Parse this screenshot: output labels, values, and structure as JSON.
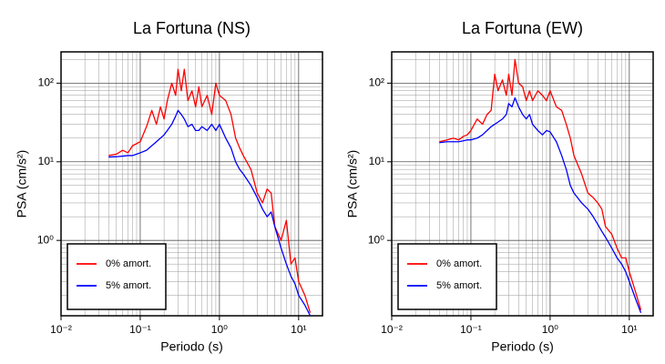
{
  "chart_data": [
    {
      "type": "line",
      "title": "La Fortuna (NS)",
      "xlabel": "Periodo (s)",
      "ylabel": "PSA (cm/s²)",
      "x": [
        0.04,
        0.05,
        0.06,
        0.07,
        0.08,
        0.09,
        0.1,
        0.12,
        0.14,
        0.16,
        0.18,
        0.2,
        0.22,
        0.25,
        0.28,
        0.3,
        0.33,
        0.36,
        0.4,
        0.45,
        0.5,
        0.55,
        0.6,
        0.7,
        0.8,
        0.9,
        1,
        1.2,
        1.4,
        1.6,
        1.8,
        2,
        2.5,
        3,
        3.5,
        4,
        4.5,
        5,
        6,
        7,
        8,
        9,
        10,
        12,
        14
      ],
      "series": [
        {
          "name": "0% amort.",
          "color": "#ff0000",
          "values": [
            12,
            12.5,
            14,
            13,
            16,
            17,
            18,
            28,
            45,
            30,
            50,
            35,
            60,
            100,
            70,
            150,
            80,
            150,
            60,
            80,
            50,
            90,
            50,
            70,
            40,
            100,
            70,
            60,
            40,
            20,
            15,
            12,
            8,
            4,
            3,
            4.5,
            4,
            1.5,
            1,
            1.8,
            0.5,
            0.6,
            0.3,
            0.2,
            0.12
          ]
        },
        {
          "name": "5% amort.",
          "color": "#0000ff",
          "values": [
            11.5,
            11.6,
            11.8,
            12,
            12,
            12.5,
            13,
            14,
            16,
            18,
            20,
            22,
            25,
            30,
            38,
            45,
            40,
            35,
            28,
            30,
            25,
            25,
            28,
            25,
            30,
            25,
            30,
            20,
            15,
            10,
            8,
            7,
            5,
            3.5,
            2.5,
            2,
            2.3,
            1.5,
            0.8,
            0.5,
            0.35,
            0.28,
            0.2,
            0.15,
            0.11
          ]
        }
      ],
      "xlim": [
        0.01,
        20
      ],
      "ylim": [
        0.11,
        250
      ],
      "xscale": "log",
      "yscale": "log",
      "xticks": [
        {
          "value": 0.01,
          "label": "10⁻²"
        },
        {
          "value": 0.1,
          "label": "10⁻¹"
        },
        {
          "value": 1,
          "label": "10⁰"
        },
        {
          "value": 10,
          "label": "10¹"
        }
      ],
      "yticks": [
        {
          "value": 1,
          "label": "10⁰"
        },
        {
          "value": 10,
          "label": "10¹"
        },
        {
          "value": 100,
          "label": "10²"
        }
      ],
      "grid": true,
      "legend": "lower left"
    },
    {
      "type": "line",
      "title": "La Fortuna (EW)",
      "xlabel": "Periodo (s)",
      "ylabel": "PSA (cm/s²)",
      "x": [
        0.04,
        0.05,
        0.06,
        0.07,
        0.08,
        0.09,
        0.1,
        0.12,
        0.14,
        0.16,
        0.18,
        0.2,
        0.22,
        0.25,
        0.28,
        0.3,
        0.33,
        0.36,
        0.4,
        0.45,
        0.5,
        0.55,
        0.6,
        0.7,
        0.8,
        0.9,
        1,
        1.2,
        1.4,
        1.6,
        1.8,
        2,
        2.5,
        3,
        3.5,
        4,
        4.5,
        5,
        6,
        7,
        8,
        9,
        10,
        12,
        14
      ],
      "series": [
        {
          "name": "0% amort.",
          "color": "#ff0000",
          "values": [
            18,
            19,
            20,
            19,
            21,
            22,
            25,
            35,
            30,
            40,
            45,
            130,
            80,
            110,
            70,
            130,
            70,
            200,
            100,
            90,
            60,
            80,
            60,
            80,
            70,
            60,
            80,
            50,
            45,
            30,
            20,
            12,
            7,
            4,
            3.5,
            3,
            2.5,
            1.5,
            1.2,
            0.8,
            0.6,
            0.6,
            0.4,
            0.22,
            0.13
          ]
        },
        {
          "name": "5% amort.",
          "color": "#0000ff",
          "values": [
            17.5,
            18,
            18,
            18,
            18.5,
            19,
            19,
            20,
            22,
            25,
            28,
            30,
            32,
            35,
            40,
            55,
            50,
            65,
            50,
            40,
            35,
            40,
            30,
            25,
            22,
            25,
            24,
            18,
            12,
            8,
            5,
            4,
            3,
            2.5,
            2,
            1.6,
            1.3,
            1.1,
            0.8,
            0.6,
            0.5,
            0.4,
            0.3,
            0.18,
            0.12
          ]
        }
      ],
      "xlim": [
        0.01,
        20
      ],
      "ylim": [
        0.11,
        250
      ],
      "xscale": "log",
      "yscale": "log",
      "xticks": [
        {
          "value": 0.01,
          "label": "10⁻²"
        },
        {
          "value": 0.1,
          "label": "10⁻¹"
        },
        {
          "value": 1,
          "label": "10⁰"
        },
        {
          "value": 10,
          "label": "10¹"
        }
      ],
      "yticks": [
        {
          "value": 1,
          "label": "10⁰"
        },
        {
          "value": 10,
          "label": "10¹"
        },
        {
          "value": 100,
          "label": "10²"
        }
      ],
      "grid": true,
      "legend": "lower left"
    }
  ]
}
